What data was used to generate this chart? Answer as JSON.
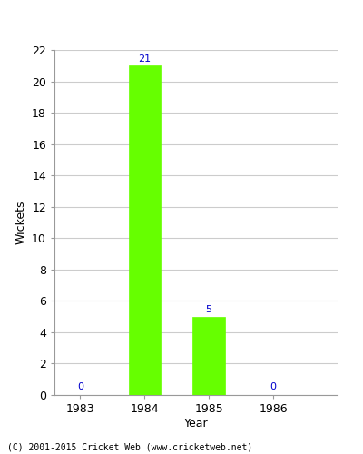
{
  "years": [
    1983,
    1984,
    1985,
    1986
  ],
  "wickets": [
    0,
    21,
    5,
    0
  ],
  "bar_color": "#66ff00",
  "bar_edge_color": "#66ff00",
  "ylabel": "Wickets",
  "xlabel": "Year",
  "ylim": [
    0,
    22
  ],
  "yticks": [
    0,
    2,
    4,
    6,
    8,
    10,
    12,
    14,
    16,
    18,
    20,
    22
  ],
  "background_color": "#ffffff",
  "grid_color": "#cccccc",
  "annotation_color": "#0000cc",
  "footer_text": "(C) 2001-2015 Cricket Web (www.cricketweb.net)",
  "bar_width": 0.5
}
